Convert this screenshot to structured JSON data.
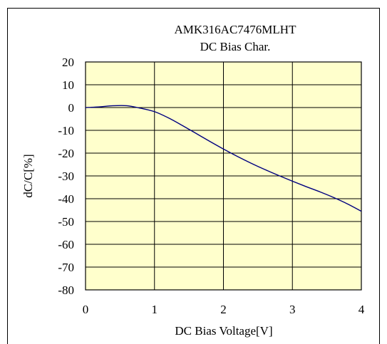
{
  "chart_data": {
    "type": "line",
    "title": "AMK316AC7476MLHT",
    "subtitle": "DC Bias Char.",
    "xlabel": "DC Bias Voltage[V]",
    "ylabel": "dC/C[%]",
    "xlim": [
      0,
      4
    ],
    "ylim": [
      -80,
      20
    ],
    "x_ticks": [
      0,
      1,
      2,
      3,
      4
    ],
    "y_ticks": [
      20,
      10,
      0,
      -10,
      -20,
      -30,
      -40,
      -50,
      -60,
      -70,
      -80
    ],
    "x_tick_labels": [
      "0",
      "1",
      "2",
      "3",
      "4"
    ],
    "y_tick_labels": [
      "20",
      "10",
      "0",
      "-10",
      "-20",
      "-30",
      "-40",
      "-50",
      "-60",
      "-70",
      "-80"
    ],
    "grid": true,
    "plot_background": "#FFFFCC",
    "line_color": "#000080",
    "series": [
      {
        "x": [
          0,
          0.2,
          0.4,
          0.6,
          0.8,
          1.0,
          1.2,
          1.4,
          1.6,
          1.8,
          2.0,
          2.2,
          2.4,
          2.6,
          2.8,
          3.0,
          3.2,
          3.4,
          3.6,
          3.8,
          4.0
        ],
        "values": [
          0,
          0.3,
          0.8,
          0.8,
          -0.3,
          -1.8,
          -4.5,
          -7.8,
          -11.3,
          -14.8,
          -18.2,
          -21.4,
          -24.4,
          -27.2,
          -29.8,
          -32.3,
          -34.7,
          -37.0,
          -39.5,
          -42.3,
          -45.5
        ]
      }
    ]
  }
}
